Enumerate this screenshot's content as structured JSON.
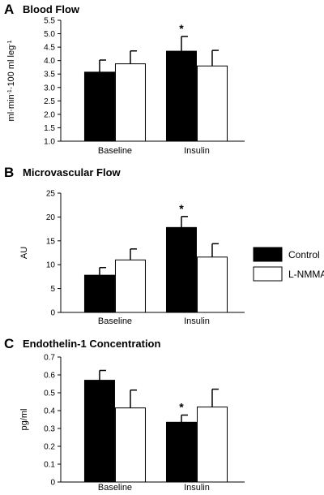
{
  "legend": {
    "items": [
      {
        "label": "Control",
        "fill": "#000000"
      },
      {
        "label": "L-NMMA",
        "fill": "#ffffff"
      }
    ]
  },
  "chart_data": [
    {
      "panel": "A",
      "title": "Blood Flow",
      "type": "bar",
      "categories": [
        "Baseline",
        "Insulin"
      ],
      "ylabel_parts": [
        "ml·min",
        "-1",
        "·100 ml leg",
        "-1"
      ],
      "ylim": [
        1.0,
        5.5
      ],
      "yticks": [
        "1.0",
        "1.5",
        "2.0",
        "2.5",
        "3.0",
        "3.5",
        "4.0",
        "4.5",
        "5.0",
        "5.5"
      ],
      "series": [
        {
          "name": "Control",
          "values": [
            3.57,
            4.35
          ],
          "errors": [
            0.45,
            0.55
          ]
        },
        {
          "name": "L-NMMA",
          "values": [
            3.88,
            3.8
          ],
          "errors": [
            0.48,
            0.58
          ]
        }
      ],
      "annotations": [
        {
          "text": "*",
          "series": 0,
          "category": 1
        }
      ]
    },
    {
      "panel": "B",
      "title": "Microvascular Flow",
      "type": "bar",
      "categories": [
        "Baseline",
        "Insulin"
      ],
      "ylabel_parts": [
        "AU"
      ],
      "ylim": [
        0,
        25
      ],
      "yticks": [
        "0",
        "5",
        "10",
        "15",
        "20",
        "25"
      ],
      "series": [
        {
          "name": "Control",
          "values": [
            7.8,
            17.8
          ],
          "errors": [
            1.6,
            2.3
          ]
        },
        {
          "name": "L-NMMA",
          "values": [
            11.0,
            11.6
          ],
          "errors": [
            2.3,
            2.8
          ]
        }
      ],
      "annotations": [
        {
          "text": "*",
          "series": 0,
          "category": 1
        }
      ]
    },
    {
      "panel": "C",
      "title": "Endothelin-1 Concentration",
      "type": "bar",
      "categories": [
        "Baseline",
        "Insulin"
      ],
      "ylabel_parts": [
        "pg/ml"
      ],
      "ylim": [
        0,
        0.7
      ],
      "yticks": [
        "0",
        "0.1",
        "0.2",
        "0.3",
        "0.4",
        "0.5",
        "0.6",
        "0.7"
      ],
      "series": [
        {
          "name": "Control",
          "values": [
            0.57,
            0.335
          ],
          "errors": [
            0.055,
            0.04
          ]
        },
        {
          "name": "L-NMMA",
          "values": [
            0.415,
            0.42
          ],
          "errors": [
            0.1,
            0.1
          ]
        }
      ],
      "annotations": [
        {
          "text": "*",
          "series": 0,
          "category": 1
        }
      ]
    }
  ]
}
